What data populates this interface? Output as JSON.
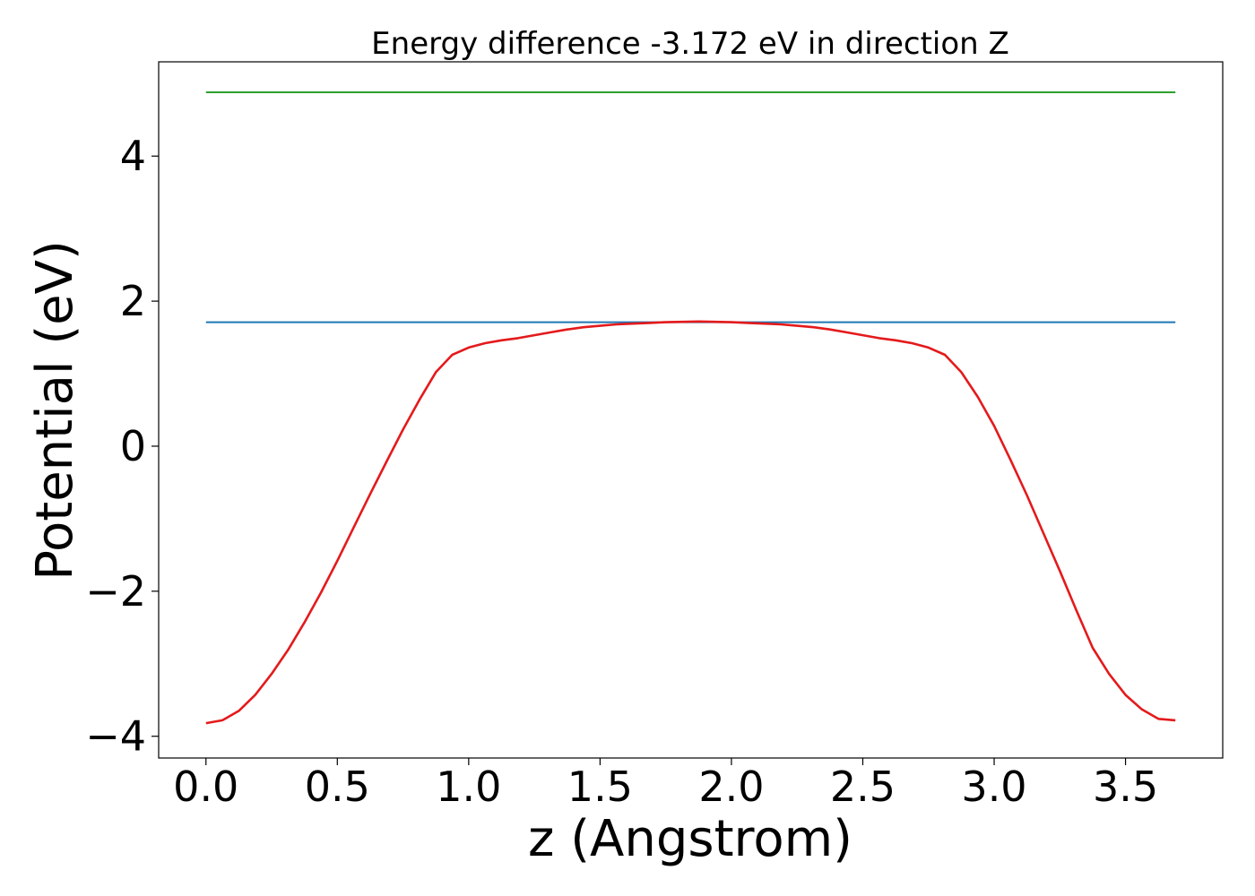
{
  "chart_data": {
    "type": "line",
    "title": "Energy difference -3.172 eV in direction Z",
    "xlabel": "z (Angstrom)",
    "ylabel": "Potential (eV)",
    "xlim": [
      -0.18,
      3.87
    ],
    "ylim": [
      -4.3,
      5.3
    ],
    "xticks": [
      0.0,
      0.5,
      1.0,
      1.5,
      2.0,
      2.5,
      3.0,
      3.5
    ],
    "xtick_labels": [
      "0.0",
      "0.5",
      "1.0",
      "1.5",
      "2.0",
      "2.5",
      "3.0",
      "3.5"
    ],
    "yticks": [
      -4,
      -2,
      0,
      2,
      4
    ],
    "ytick_labels": [
      "−4",
      "−2",
      "0",
      "2",
      "4"
    ],
    "grid": false,
    "series": [
      {
        "color": "#2ca02c",
        "x": [
          0.0,
          3.69
        ],
        "y": [
          4.88,
          4.88
        ]
      },
      {
        "color": "#1f77b4",
        "x": [
          0.0,
          3.69
        ],
        "y": [
          1.71,
          1.71
        ]
      },
      {
        "color": "#e41a1c",
        "x": [
          0.0,
          0.0625,
          0.125,
          0.1875,
          0.25,
          0.3125,
          0.375,
          0.4375,
          0.5,
          0.5625,
          0.625,
          0.6875,
          0.75,
          0.8125,
          0.875,
          0.9375,
          1.0,
          1.0625,
          1.125,
          1.1875,
          1.25,
          1.3125,
          1.375,
          1.4375,
          1.5,
          1.5625,
          1.625,
          1.6875,
          1.75,
          1.8125,
          1.875,
          1.9375,
          2.0,
          2.0625,
          2.125,
          2.1875,
          2.25,
          2.3125,
          2.375,
          2.4375,
          2.5,
          2.5625,
          2.625,
          2.6875,
          2.75,
          2.8125,
          2.875,
          2.9375,
          3.0,
          3.0625,
          3.125,
          3.1875,
          3.25,
          3.3125,
          3.375,
          3.4375,
          3.5,
          3.5625,
          3.625,
          3.69
        ],
        "y": [
          -3.82,
          -3.78,
          -3.65,
          -3.43,
          -3.14,
          -2.81,
          -2.43,
          -2.02,
          -1.58,
          -1.12,
          -0.66,
          -0.21,
          0.23,
          0.64,
          1.02,
          1.26,
          1.36,
          1.42,
          1.46,
          1.49,
          1.53,
          1.57,
          1.61,
          1.64,
          1.66,
          1.68,
          1.69,
          1.7,
          1.71,
          1.715,
          1.72,
          1.715,
          1.71,
          1.7,
          1.69,
          1.68,
          1.66,
          1.64,
          1.61,
          1.57,
          1.53,
          1.49,
          1.46,
          1.42,
          1.36,
          1.26,
          1.02,
          0.68,
          0.28,
          -0.19,
          -0.68,
          -1.2,
          -1.72,
          -2.26,
          -2.78,
          -3.14,
          -3.43,
          -3.63,
          -3.76,
          -3.78
        ]
      }
    ]
  }
}
